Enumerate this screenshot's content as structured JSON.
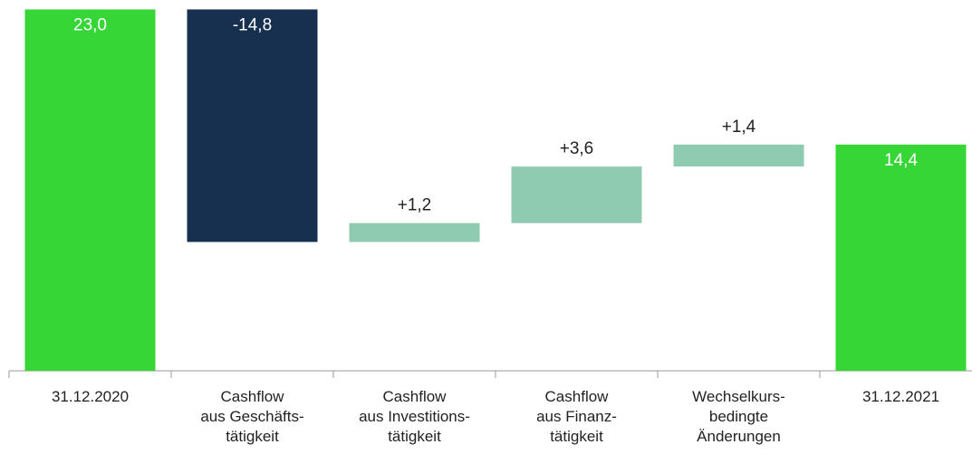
{
  "chart_data": {
    "type": "waterfall",
    "categories": [
      "31.12.2020",
      "Cashflow\naus Geschäfts-\ntätigkeit",
      "Cashflow\naus Investitions-\ntätigkeit",
      "Cashflow\naus Finanz-\ntätigkeit",
      "Wechselkurs-\nbedingte\nÄnderungen",
      "31.12.2021"
    ],
    "values": [
      23.0,
      -14.8,
      1.2,
      3.6,
      1.4,
      14.4
    ],
    "value_labels": [
      "23,0",
      "-14,8",
      "+1,2",
      "+3,6",
      "+1,4",
      "14,4"
    ],
    "totals": [
      true,
      false,
      false,
      false,
      false,
      true
    ],
    "colors": {
      "total": "#36d636",
      "negative": "#17304f",
      "positive": "#8ecbb0"
    },
    "ylim": [
      0,
      23.6
    ]
  }
}
